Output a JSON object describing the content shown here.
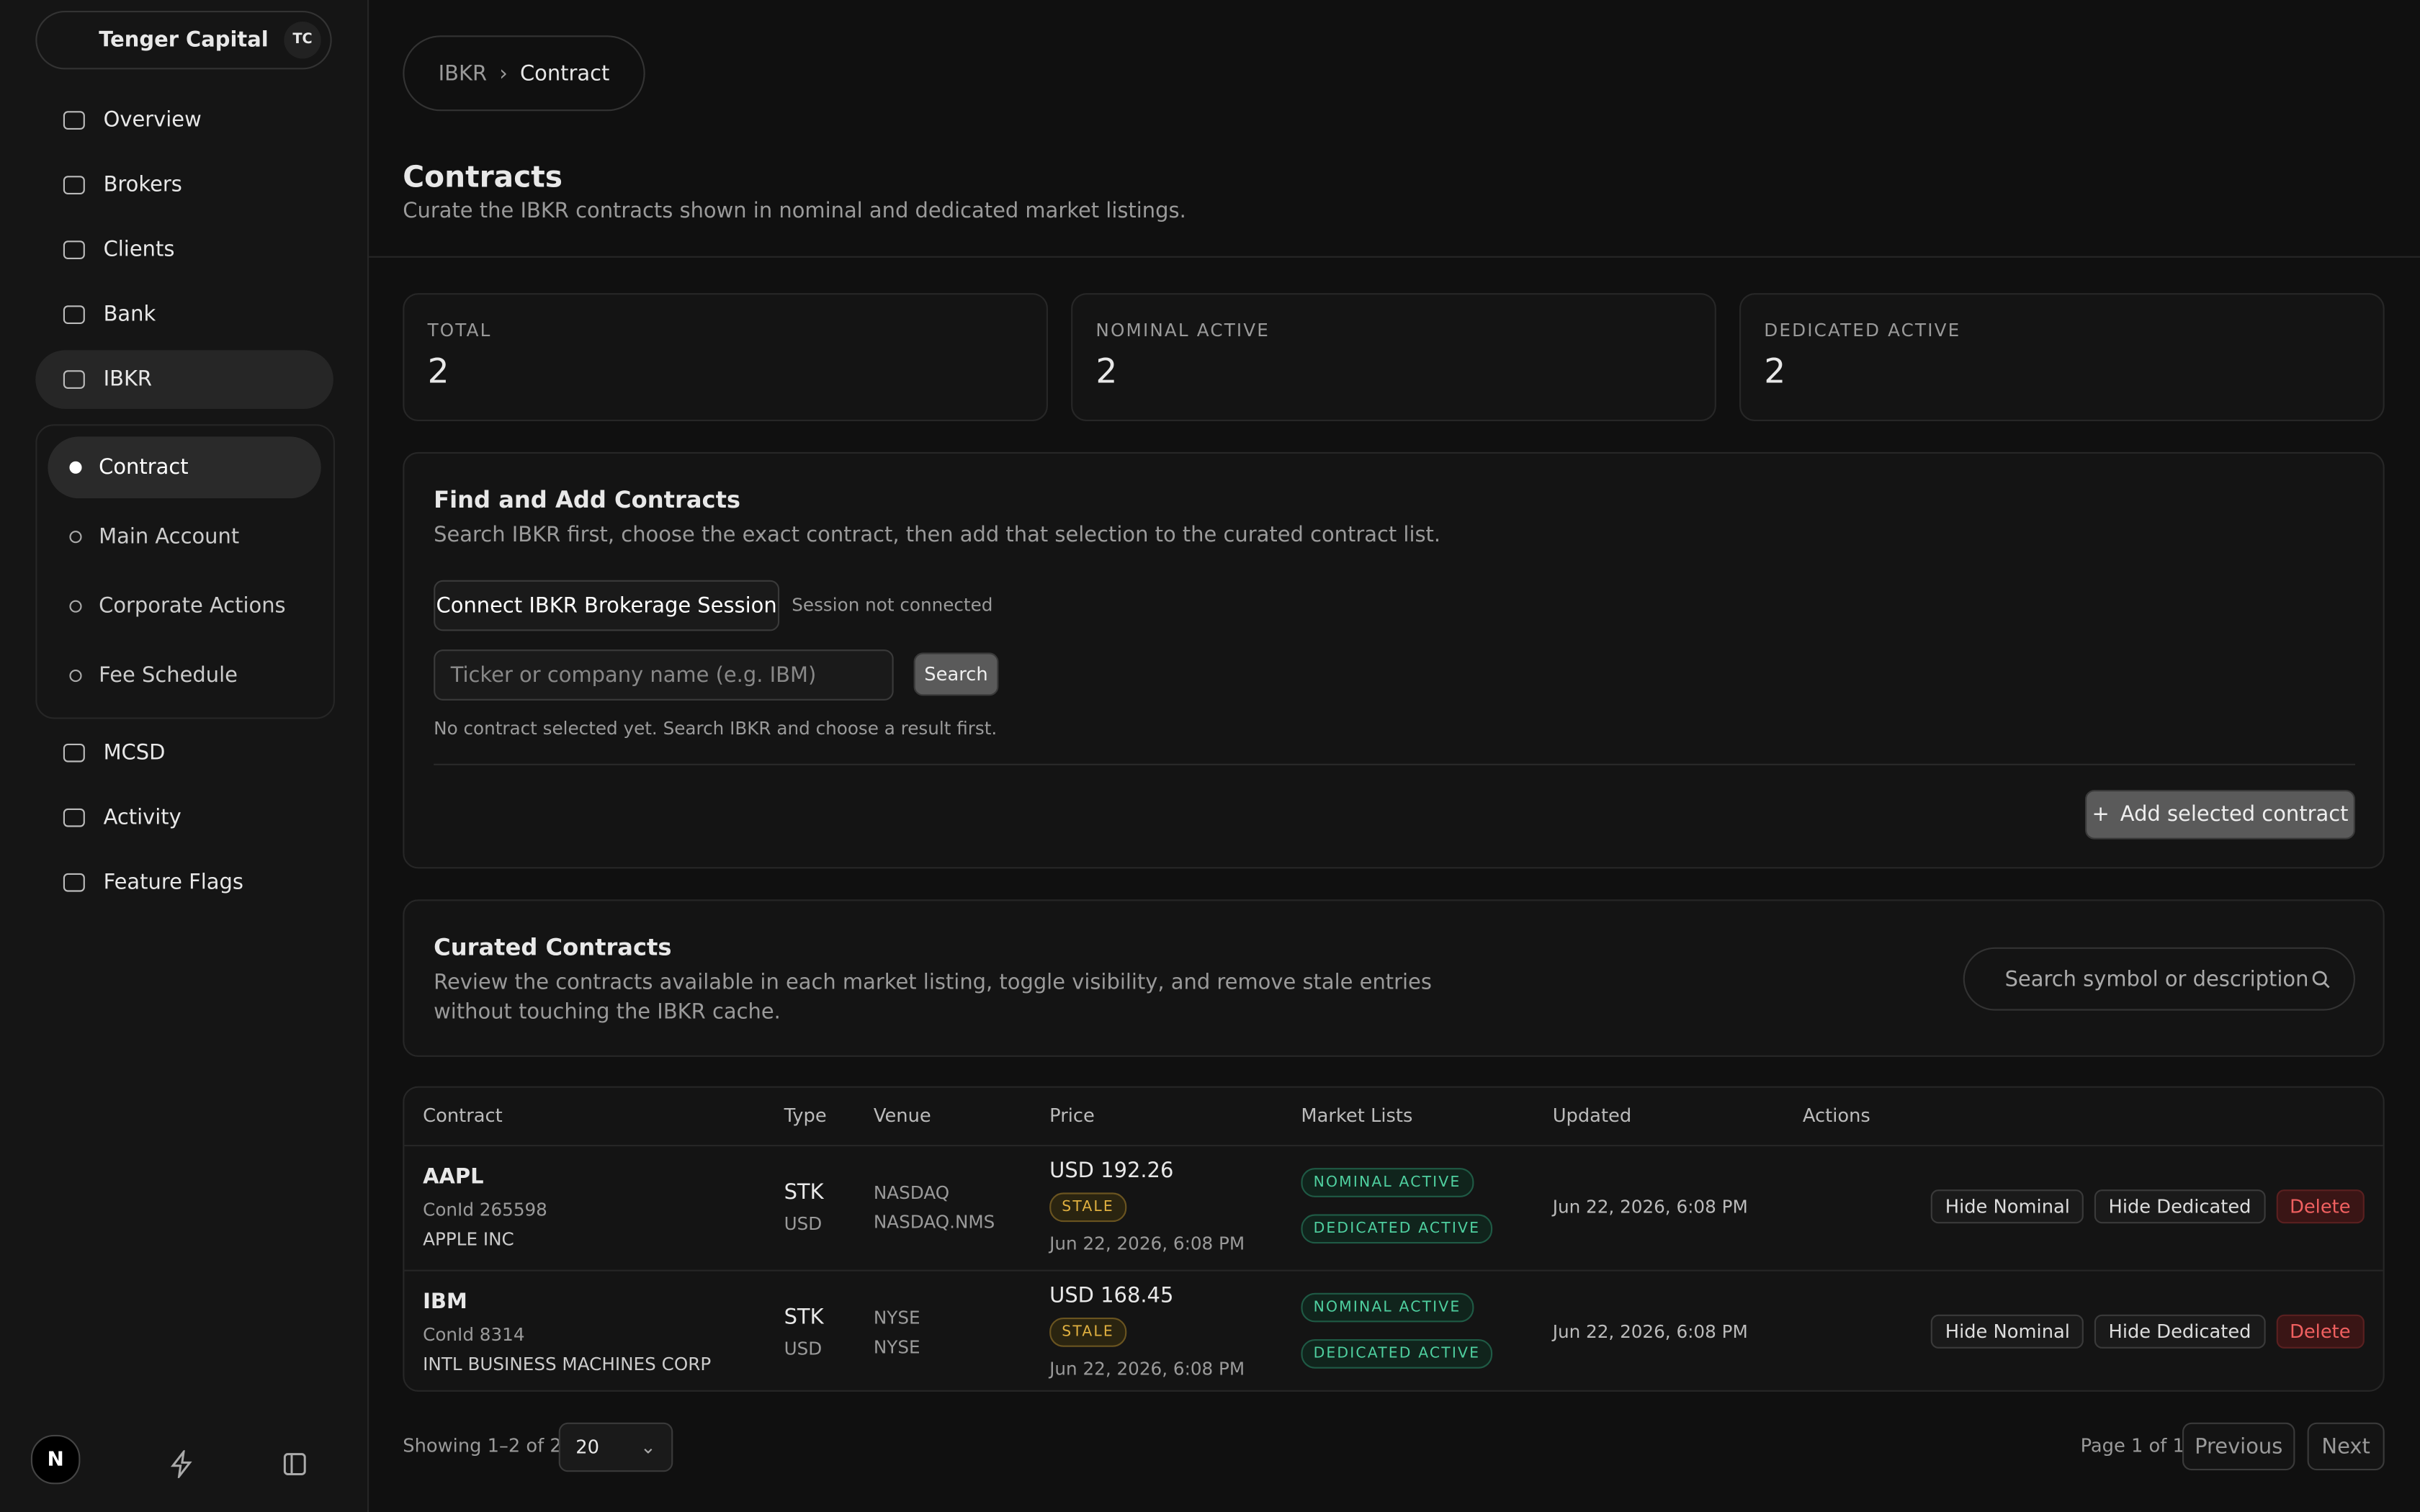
{
  "sidebar": {
    "brand": "Tenger Capital",
    "avatar": "TC",
    "nav": [
      "Overview",
      "Brokers",
      "Clients",
      "Bank",
      "IBKR"
    ],
    "subnav": [
      "Contract",
      "Main Account",
      "Corporate Actions",
      "Fee Schedule"
    ],
    "nav2": [
      "MCSD",
      "Activity",
      "Feature Flags"
    ]
  },
  "breadcrumb": [
    "IBKR",
    "Contract"
  ],
  "header": {
    "title": "Contracts",
    "subtitle": "Curate the IBKR contracts shown in nominal and dedicated market listings."
  },
  "stats": [
    {
      "label": "TOTAL",
      "value": 2
    },
    {
      "label": "NOMINAL ACTIVE",
      "value": 2
    },
    {
      "label": "DEDICATED ACTIVE",
      "value": 2
    }
  ],
  "find": {
    "title": "Find and Add Contracts",
    "description": "Search IBKR first, choose the exact contract, then add that selection to the curated contract list.",
    "connect_button": "Connect IBKR Brokerage Session",
    "session_status": "Session not connected",
    "search_placeholder": "Ticker or company name (e.g. IBM)",
    "search_button": "Search",
    "hint": "No contract selected yet. Search IBKR and choose a result first.",
    "add_button": "Add selected contract"
  },
  "curated": {
    "title": "Curated Contracts",
    "description": "Review the contracts available in each market listing, toggle visibility, and remove stale entries without touching the IBKR cache.",
    "search_placeholder": "Search symbol or description"
  },
  "table": {
    "columns": [
      "Contract",
      "Type",
      "Venue",
      "Price",
      "Market Lists",
      "Updated",
      "Actions"
    ],
    "rows": [
      {
        "symbol": "AAPL",
        "conid": "ConId 265598",
        "name": "APPLE INC",
        "type": "STK",
        "currency": "USD",
        "venue": "NASDAQ",
        "venue_detail": "NASDAQ.NMS",
        "price": "USD 192.26",
        "status": "STALE",
        "price_time": "Jun 22, 2026, 6:08 PM",
        "lists": [
          "NOMINAL ACTIVE",
          "DEDICATED ACTIVE"
        ],
        "updated": "Jun 22, 2026, 6:08 PM",
        "actions": [
          "Hide Nominal",
          "Hide Dedicated",
          "Delete"
        ]
      },
      {
        "symbol": "IBM",
        "conid": "ConId 8314",
        "name": "INTL BUSINESS MACHINES CORP",
        "type": "STK",
        "currency": "USD",
        "venue": "NYSE",
        "venue_detail": "NYSE",
        "price": "USD 168.45",
        "status": "STALE",
        "price_time": "Jun 22, 2026, 6:08 PM",
        "lists": [
          "NOMINAL ACTIVE",
          "DEDICATED ACTIVE"
        ],
        "updated": "Jun 22, 2026, 6:08 PM",
        "actions": [
          "Hide Nominal",
          "Hide Dedicated",
          "Delete"
        ]
      }
    ]
  },
  "footer": {
    "showing": "Showing 1–2 of 2",
    "page_size": "20",
    "page": "Page 1 of 1",
    "previous": "Previous",
    "next": "Next"
  }
}
